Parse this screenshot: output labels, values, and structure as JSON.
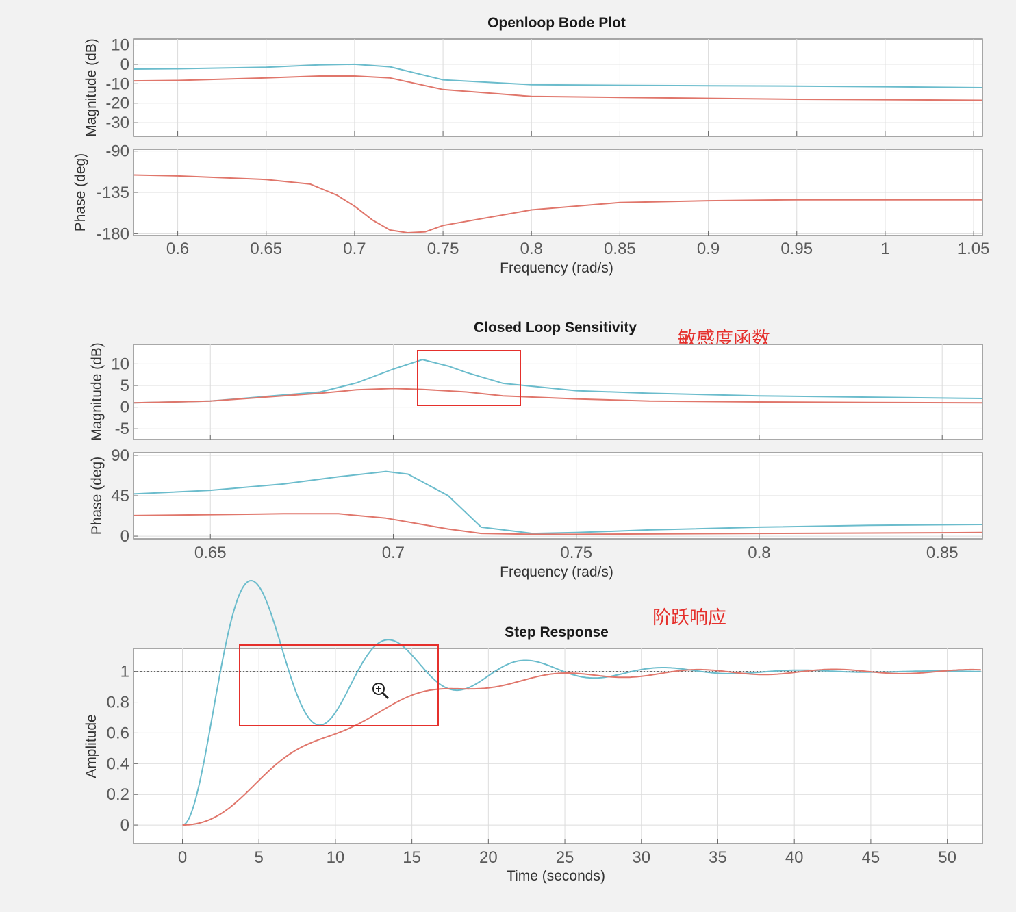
{
  "colors": {
    "series_1": "#6bbccc",
    "series_2": "#e0766b",
    "annotation": "#e5302c",
    "reference": "#666666"
  },
  "annotations": {
    "sensitivity_note": "敏感度函数",
    "step_note": "阶跃响应"
  },
  "cursor_icon": "zoom-in-icon",
  "chart_data": [
    {
      "id": "openloop",
      "type": "line",
      "title": "Openloop Bode Plot",
      "xlabel": "Frequency  (rad/s)",
      "xlim": [
        0.575,
        1.055
      ],
      "x_ticks": [
        0.6,
        0.65,
        0.7,
        0.75,
        0.8,
        0.85,
        0.9,
        0.95,
        1,
        1.05
      ],
      "x_tick_labels": [
        "0.6",
        "0.65",
        "0.7",
        "0.75",
        "0.8",
        "0.85",
        "0.9",
        "0.95",
        "1",
        "1.05"
      ],
      "panels": [
        {
          "name": "magnitude",
          "ylabel": "Magnitude (dB)",
          "ylim": [
            -37,
            13
          ],
          "y_ticks": [
            10,
            0,
            -10,
            -20,
            -30
          ],
          "y_tick_labels": [
            "10",
            "0",
            "-10",
            "-20",
            "-30"
          ],
          "series": [
            {
              "name": "series-1",
              "x": [
                0.575,
                0.6,
                0.65,
                0.68,
                0.7,
                0.72,
                0.75,
                0.8,
                0.85,
                0.9,
                0.95,
                1.0,
                1.055
              ],
              "values": [
                -2.5,
                -2.3,
                -1.5,
                -0.3,
                0,
                -1.3,
                -8,
                -10.5,
                -10.8,
                -11,
                -11.2,
                -11.5,
                -12
              ]
            },
            {
              "name": "series-2",
              "x": [
                0.575,
                0.6,
                0.65,
                0.68,
                0.7,
                0.72,
                0.75,
                0.8,
                0.85,
                0.9,
                0.95,
                1.0,
                1.055
              ],
              "values": [
                -8.5,
                -8.3,
                -7,
                -6,
                -6,
                -7,
                -13,
                -16.5,
                -17,
                -17.5,
                -18,
                -18.2,
                -18.5
              ]
            }
          ]
        },
        {
          "name": "phase",
          "ylabel": "Phase (deg)",
          "ylim": [
            -182,
            -88
          ],
          "y_ticks": [
            -90,
            -135,
            -180
          ],
          "y_tick_labels": [
            "-90",
            "-135",
            "-180"
          ],
          "series": [
            {
              "name": "series-2",
              "x": [
                0.575,
                0.6,
                0.65,
                0.675,
                0.69,
                0.7,
                0.71,
                0.72,
                0.73,
                0.74,
                0.75,
                0.8,
                0.85,
                0.9,
                0.95,
                1.0,
                1.055
              ],
              "values": [
                -116,
                -117,
                -121,
                -126,
                -138,
                -150,
                -165,
                -176,
                -179,
                -178,
                -171,
                -154,
                -146,
                -144,
                -143,
                -143,
                -143
              ]
            }
          ]
        }
      ]
    },
    {
      "id": "sensitivity",
      "type": "line",
      "title": "Closed Loop Sensitivity",
      "xlabel": "Frequency  (rad/s)",
      "xlim": [
        0.629,
        0.861
      ],
      "x_ticks": [
        0.65,
        0.7,
        0.75,
        0.8,
        0.85
      ],
      "x_tick_labels": [
        "0.65",
        "0.7",
        "0.75",
        "0.8",
        "0.85"
      ],
      "panels": [
        {
          "name": "magnitude",
          "ylabel": "Magnitude (dB)",
          "ylim": [
            -7.5,
            14.5
          ],
          "y_ticks": [
            10,
            5,
            0,
            -5
          ],
          "y_tick_labels": [
            "10",
            "5",
            "0",
            "-5"
          ],
          "series": [
            {
              "name": "series-1",
              "x": [
                0.629,
                0.65,
                0.68,
                0.69,
                0.7,
                0.708,
                0.715,
                0.72,
                0.73,
                0.75,
                0.77,
                0.8,
                0.83,
                0.861
              ],
              "values": [
                1,
                1.4,
                3.5,
                5.6,
                8.8,
                11,
                9.5,
                8,
                5.5,
                3.8,
                3.2,
                2.6,
                2.3,
                2
              ]
            },
            {
              "name": "series-2",
              "x": [
                0.629,
                0.65,
                0.68,
                0.69,
                0.7,
                0.708,
                0.72,
                0.73,
                0.75,
                0.77,
                0.8,
                0.83,
                0.861
              ],
              "values": [
                1,
                1.4,
                3.2,
                4,
                4.3,
                4.1,
                3.5,
                2.6,
                1.9,
                1.4,
                1.2,
                1.1,
                1
              ]
            }
          ]
        },
        {
          "name": "phase",
          "ylabel": "Phase (deg)",
          "ylim": [
            -3,
            93
          ],
          "y_ticks": [
            90,
            45,
            0
          ],
          "y_tick_labels": [
            "90",
            "45",
            "0"
          ],
          "series": [
            {
              "name": "series-1",
              "x": [
                0.629,
                0.65,
                0.67,
                0.685,
                0.698,
                0.704,
                0.715,
                0.724,
                0.738,
                0.75,
                0.77,
                0.8,
                0.83,
                0.861
              ],
              "values": [
                47,
                51,
                58,
                66,
                72,
                69,
                45,
                10,
                3,
                4,
                7,
                10,
                12,
                13
              ]
            },
            {
              "name": "series-2",
              "x": [
                0.629,
                0.65,
                0.67,
                0.685,
                0.698,
                0.715,
                0.724,
                0.738,
                0.75,
                0.8,
                0.861
              ],
              "values": [
                23,
                24,
                25,
                25,
                20,
                8,
                3,
                2,
                2,
                3,
                4
              ]
            }
          ]
        }
      ]
    },
    {
      "id": "step",
      "type": "line",
      "title": "Step Response",
      "xlabel": "Time (seconds)",
      "ylabel": "Amplitude",
      "xlim": [
        -3.2,
        52.3
      ],
      "ylim": [
        -0.12,
        1.15
      ],
      "x_ticks": [
        0,
        5,
        10,
        15,
        20,
        25,
        30,
        35,
        40,
        45,
        50
      ],
      "x_tick_labels": [
        "0",
        "5",
        "10",
        "15",
        "20",
        "25",
        "30",
        "35",
        "40",
        "45",
        "50"
      ],
      "y_ticks": [
        1,
        0.8,
        0.6,
        0.4,
        0.2,
        0
      ],
      "y_tick_labels": [
        "1",
        "0.8",
        "0.6",
        "0.4",
        "0.2",
        "0"
      ],
      "reference_line": 1,
      "series": [
        {
          "name": "series-1",
          "model": "underdamped",
          "zeta": 0.165,
          "omega_n": 0.71,
          "t_end": 52.3
        },
        {
          "name": "series-2",
          "model": "smooth",
          "tau": 4.8,
          "ripple_amplitude": 0.045,
          "ripple_omega": 0.7,
          "t_end": 52.3
        }
      ]
    }
  ]
}
